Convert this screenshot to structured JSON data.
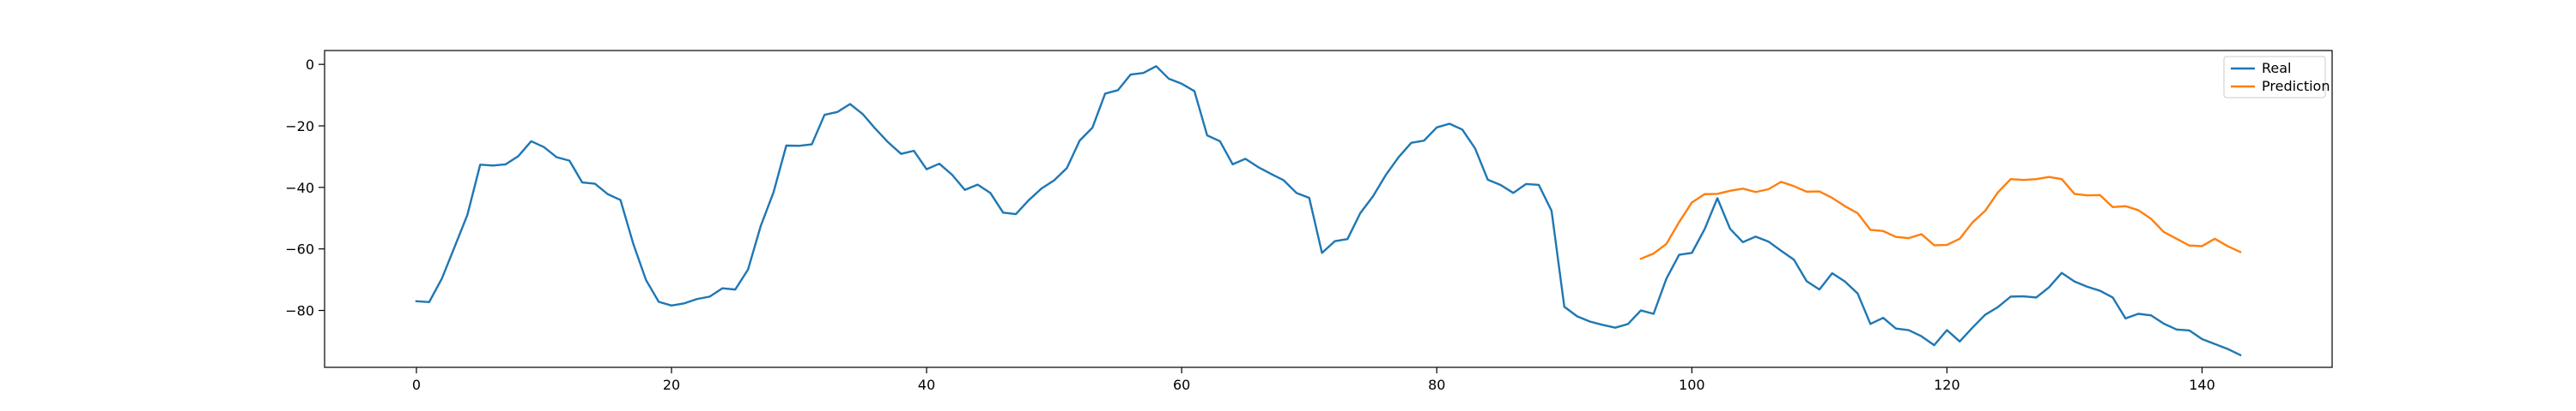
{
  "chart_data": {
    "type": "line",
    "title": "",
    "xlabel": "",
    "ylabel": "",
    "xlim": [
      -7.2,
      150.2
    ],
    "ylim": [
      -98.5,
      4.5
    ],
    "xticks": [
      0,
      20,
      40,
      60,
      80,
      100,
      120,
      140
    ],
    "yticks": [
      0,
      -20,
      -40,
      -60,
      -80
    ],
    "grid": false,
    "legend_position": "top-right",
    "series": [
      {
        "name": "Real",
        "color": "#1f77b4",
        "x_start": 0,
        "values": [
          -77,
          -77.3,
          -69.6,
          -59.3,
          -48.9,
          -32.6,
          -32.9,
          -32.5,
          -29.8,
          -25,
          -26.9,
          -30.2,
          -31.3,
          -38.4,
          -38.8,
          -42.2,
          -44.1,
          -58.3,
          -70.1,
          -77.2,
          -78.4,
          -77.7,
          -76.3,
          -75.5,
          -72.8,
          -73.2,
          -66.7,
          -52.5,
          -41.6,
          -26.4,
          -26.5,
          -26,
          -16.4,
          -15.5,
          -12.9,
          -16.2,
          -21,
          -25.4,
          -29.1,
          -28.1,
          -34.1,
          -32.3,
          -35.9,
          -40.8,
          -39.1,
          -41.8,
          -48.2,
          -48.7,
          -44.2,
          -40.4,
          -37.7,
          -33.7,
          -24.8,
          -20.6,
          -9.5,
          -8.4,
          -3.3,
          -2.8,
          -0.6,
          -4.7,
          -6.3,
          -8.7,
          -23.1,
          -25,
          -32.5,
          -30.7,
          -33.4,
          -35.6,
          -37.7,
          -41.8,
          -43.4,
          -61.3,
          -57.5,
          -56.8,
          -48.4,
          -42.9,
          -36,
          -30.2,
          -25.5,
          -24.8,
          -20.5,
          -19.3,
          -21.2,
          -27.3,
          -37.5,
          -39.2,
          -41.8,
          -38.9,
          -39.2,
          -47.6,
          -78.8,
          -81.9,
          -83.6,
          -84.7,
          -85.6,
          -84.4,
          -80,
          -81.1,
          -69.7,
          -61.9,
          -61.3,
          -53.6,
          -43.5,
          -53.5,
          -57.8,
          -56,
          -57.6,
          -60.6,
          -63.5,
          -70.5,
          -73.2,
          -67.9,
          -70.6,
          -74.5,
          -84.4,
          -82.4,
          -85.9,
          -86.4,
          -88.4,
          -91.3,
          -86.4,
          -90.1,
          -85.6,
          -81.4,
          -78.9,
          -75.5,
          -75.4,
          -75.8,
          -72.5,
          -67.8,
          -70.6,
          -72.3,
          -73.6,
          -75.8,
          -82.6,
          -81.1,
          -81.6,
          -84.3,
          -86.2,
          -86.5,
          -89.3,
          -90.9,
          -92.5,
          -94.5
        ]
      },
      {
        "name": "Prediction",
        "color": "#ff7f0e",
        "x_start": 96,
        "values": [
          -63.2,
          -61.5,
          -58.4,
          -51.3,
          -44.9,
          -42.2,
          -42.1,
          -41.1,
          -40.4,
          -41.5,
          -40.6,
          -38.2,
          -39.6,
          -41.4,
          -41.3,
          -43.4,
          -46.1,
          -48.4,
          -53.8,
          -54.2,
          -56.1,
          -56.5,
          -55.2,
          -58.8,
          -58.7,
          -56.7,
          -51.4,
          -47.6,
          -41.6,
          -37.3,
          -37.6,
          -37.3,
          -36.6,
          -37.3,
          -42.1,
          -42.6,
          -42.5,
          -46.4,
          -46.1,
          -47.4,
          -50.2,
          -54.5,
          -56.7,
          -58.9,
          -59.1,
          -56.7,
          -59.1,
          -61
        ]
      }
    ]
  }
}
